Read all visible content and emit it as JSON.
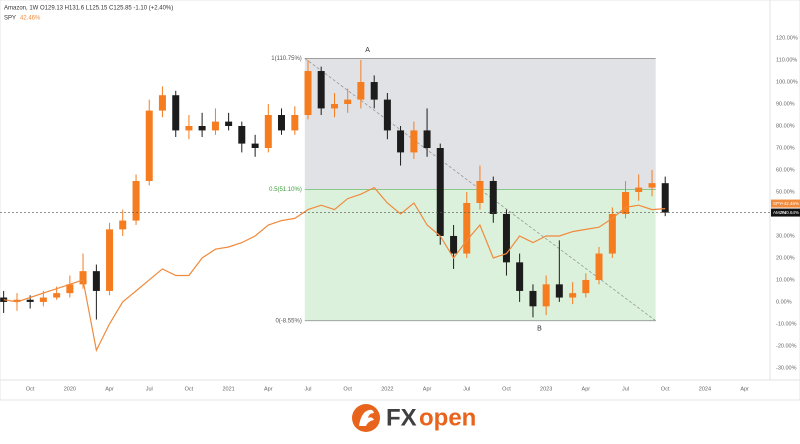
{
  "chart_data": {
    "type": "candlestick",
    "header_ohlc": "O129.13 H131.6 L125.15 C125.85 -1.10 (+2.40%)",
    "x": [
      2019.583,
      2019.667,
      2019.75,
      2019.833,
      2019.917,
      2020,
      2020.083,
      2020.167,
      2020.25,
      2020.333,
      2020.417,
      2020.5,
      2020.583,
      2020.667,
      2020.75,
      2020.833,
      2020.917,
      2021,
      2021.083,
      2021.167,
      2021.25,
      2021.333,
      2021.417,
      2021.5,
      2021.583,
      2021.667,
      2021.75,
      2021.833,
      2021.917,
      2022,
      2022.083,
      2022.167,
      2022.25,
      2022.333,
      2022.417,
      2022.5,
      2022.583,
      2022.667,
      2022.75,
      2022.833,
      2022.917,
      2023,
      2023.083,
      2023.167,
      2023.25,
      2023.333,
      2023.417,
      2023.5,
      2023.583,
      2023.667,
      2023.75
    ],
    "series": [
      {
        "name": "Amazon, 1W",
        "type": "candlestick",
        "tag": "AMZN",
        "last_label": "+40.64%",
        "up_color": "#f57c1f",
        "down_color": "#1c1c1c",
        "tag_color": "#111111",
        "open": [
          2,
          0,
          1,
          0,
          2,
          4,
          8,
          14,
          5,
          33,
          37,
          55,
          87,
          94,
          78,
          80,
          78,
          82,
          80,
          72,
          70,
          85,
          78,
          85,
          105,
          88,
          90,
          92,
          100,
          92,
          78,
          68,
          78,
          70,
          30,
          22,
          45,
          55,
          40,
          18,
          5,
          -2,
          8,
          2,
          4,
          10,
          22,
          40,
          50,
          52,
          54
        ],
        "high": [
          5,
          4,
          3,
          5,
          7,
          12,
          22,
          17,
          36,
          42,
          58,
          92,
          98,
          96,
          85,
          86,
          88,
          86,
          82,
          76,
          90,
          88,
          89,
          110,
          107,
          95,
          97,
          110,
          103,
          95,
          80,
          82,
          88,
          72,
          35,
          50,
          62,
          57,
          42,
          22,
          8,
          12,
          28,
          9,
          13,
          25,
          43,
          55,
          58,
          60,
          57
        ],
        "low": [
          -5,
          -4,
          -3,
          -2,
          1,
          2,
          6,
          -8,
          3,
          30,
          35,
          53,
          84,
          75,
          74,
          75,
          76,
          78,
          68,
          66,
          68,
          76,
          76,
          83,
          85,
          84,
          86,
          88,
          88,
          74,
          62,
          65,
          66,
          26,
          15,
          20,
          42,
          36,
          12,
          0,
          -7,
          -6,
          0,
          -1,
          2,
          8,
          20,
          38,
          46,
          48,
          39
        ],
        "close": [
          0,
          1,
          0,
          2,
          4,
          8,
          14,
          5,
          33,
          37,
          55,
          87,
          94,
          78,
          80,
          78,
          82,
          80,
          72,
          70,
          85,
          78,
          85,
          105,
          88,
          90,
          92,
          100,
          92,
          78,
          68,
          78,
          70,
          30,
          22,
          45,
          55,
          40,
          18,
          5,
          -2,
          8,
          2,
          4,
          10,
          22,
          40,
          50,
          52,
          54,
          40.64
        ]
      },
      {
        "name": "SPY",
        "type": "line",
        "tag": "SPY",
        "last_label": "+42.46%",
        "legend_value": "42.46%",
        "color": "#f08a3c",
        "values": [
          1,
          0,
          2,
          4,
          6,
          8,
          10,
          -22,
          -10,
          0,
          5,
          10,
          15,
          12,
          12,
          20,
          24,
          25,
          27,
          30,
          35,
          37,
          38,
          42,
          44,
          42,
          47,
          49,
          52,
          45,
          40,
          45,
          35,
          30,
          20,
          28,
          35,
          20,
          22,
          30,
          27,
          30,
          30,
          32,
          33,
          34,
          38,
          43,
          44,
          42,
          42.46
        ]
      }
    ],
    "fib": {
      "x": [
        2021.48,
        2023.69
      ],
      "levels": [
        {
          "value": 110.75,
          "label": "1(110.75%)"
        },
        {
          "value": 51.1,
          "label": "0.5(51.10%)"
        },
        {
          "value": -8.55,
          "label": "0(-8.55%)"
        }
      ],
      "upper_color": "#dcdde1",
      "lower_color": "#d6eed6"
    },
    "points": [
      {
        "label": "A",
        "x": 2021.875,
        "y": 110.75
      },
      {
        "label": "B",
        "x": 2022.958,
        "y": -8.55
      }
    ],
    "xlim": [
      2019.56,
      2024.41
    ],
    "xticks": [
      {
        "value": 2019.75,
        "label": "Oct"
      },
      2020,
      {
        "value": 2020.25,
        "label": "Apr"
      },
      {
        "value": 2020.5,
        "label": "Jul"
      },
      {
        "value": 2020.75,
        "label": "Oct"
      },
      2021,
      {
        "value": 2021.25,
        "label": "Apr"
      },
      {
        "value": 2021.5,
        "label": "Jul"
      },
      {
        "value": 2021.75,
        "label": "Oct"
      },
      2022,
      {
        "value": 2022.25,
        "label": "Apr"
      },
      {
        "value": 2022.5,
        "label": "Jul"
      },
      {
        "value": 2022.75,
        "label": "Oct"
      },
      2023,
      {
        "value": 2023.25,
        "label": "Apr"
      },
      {
        "value": 2023.5,
        "label": "Jul"
      },
      {
        "value": 2023.75,
        "label": "Oct"
      },
      2024,
      {
        "value": 2024.25,
        "label": "Apr"
      }
    ],
    "ylim": [
      -35.5,
      137.3
    ],
    "yticks": [
      {
        "value": 120,
        "label": "120.00%"
      },
      {
        "value": 110,
        "label": "110.00%"
      },
      {
        "value": 100,
        "label": "100.00%"
      },
      {
        "value": 90,
        "label": "90.00%"
      },
      {
        "value": 80,
        "label": "80.00%"
      },
      {
        "value": 70,
        "label": "70.00%"
      },
      {
        "value": 60,
        "label": "60.00%"
      },
      {
        "value": 50,
        "label": "50.00%"
      },
      {
        "value": 40,
        "label": "40.00%"
      },
      {
        "value": 30,
        "label": "30.00%"
      },
      {
        "value": 20,
        "label": "20.00%"
      },
      {
        "value": 10,
        "label": "10.00%"
      },
      {
        "value": 0,
        "label": "0.00%"
      },
      {
        "value": -10,
        "label": "-10.00%"
      },
      {
        "value": -20,
        "label": "-20.00%"
      },
      {
        "value": -30,
        "label": "-30.00%"
      }
    ],
    "grid": false,
    "footer": {
      "brand": [
        "FX",
        "open"
      ]
    }
  }
}
